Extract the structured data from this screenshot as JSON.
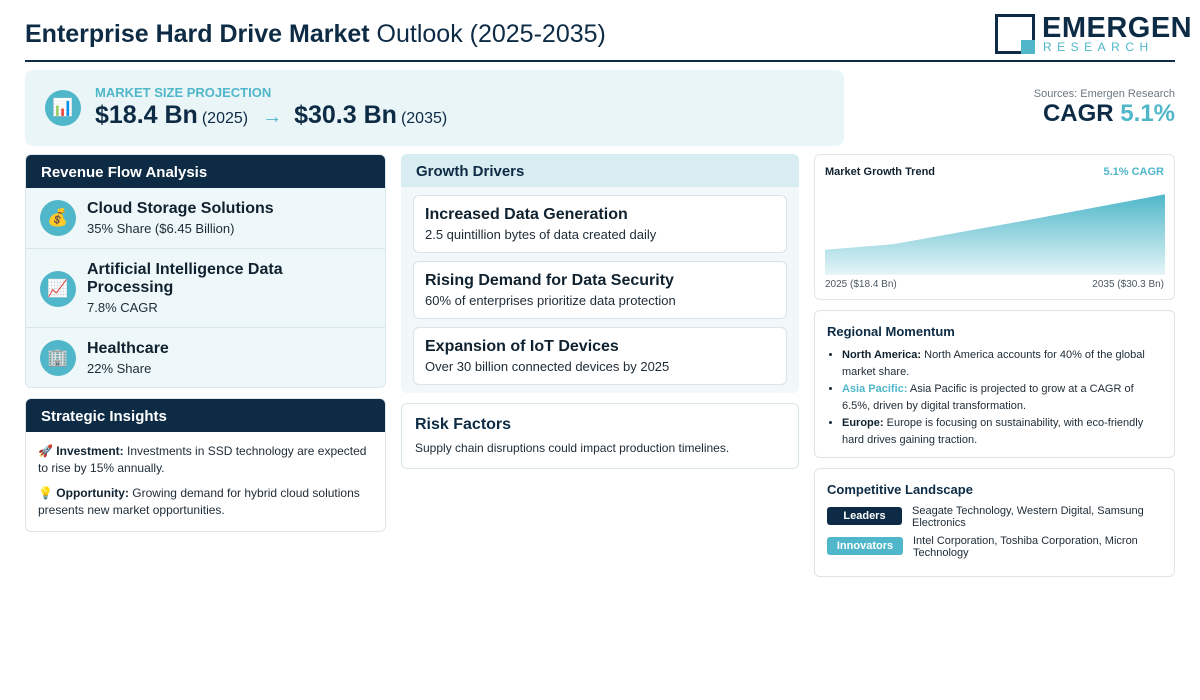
{
  "header": {
    "title_bold": "Enterprise Hard Drive Market",
    "title_rest": "Outlook (2025-2035)",
    "logo_name": "EMERGEN",
    "logo_sub": "RESEARCH"
  },
  "projection": {
    "label": "MARKET SIZE PROJECTION",
    "start_value": "$18.4 Bn",
    "start_year": "(2025)",
    "arrow": "→",
    "end_value": "$30.3 Bn",
    "end_year": "(2035)",
    "icon": "bar-chart-icon"
  },
  "sources": "Sources: Emergen Research",
  "cagr": {
    "label": "CAGR",
    "value": "5.1%"
  },
  "revenue": {
    "title": "Revenue Flow Analysis",
    "items": [
      {
        "icon": "money-bag-icon",
        "glyph": "💰",
        "title": "Cloud Storage Solutions",
        "sub": "35% Share ($6.45 Billion)"
      },
      {
        "icon": "chart-increasing-icon",
        "glyph": "📈",
        "title": "Artificial Intelligence Data Processing",
        "sub": "7.8% CAGR"
      },
      {
        "icon": "hospital-icon",
        "glyph": "🏢",
        "title": "Healthcare",
        "sub": "22% Share"
      }
    ]
  },
  "insights": {
    "title": "Strategic Insights",
    "items": [
      {
        "icon": "rocket-icon",
        "glyph": "🚀",
        "label": "Investment:",
        "text": "Investments in SSD technology are expected to rise by 15% annually."
      },
      {
        "icon": "light-bulb-icon",
        "glyph": "💡",
        "label": "Opportunity:",
        "text": "Growing demand for hybrid cloud solutions presents new market opportunities."
      }
    ]
  },
  "drivers": {
    "title": "Growth Drivers",
    "items": [
      {
        "title": "Increased Data Generation",
        "sub": "2.5 quintillion bytes of data created daily"
      },
      {
        "title": "Rising Demand for Data Security",
        "sub": "60% of enterprises prioritize data protection"
      },
      {
        "title": "Expansion of IoT Devices",
        "sub": "Over 30 billion connected devices by 2025"
      }
    ]
  },
  "risk": {
    "title": "Risk Factors",
    "text": "Supply chain disruptions could impact production timelines."
  },
  "trend": {
    "title": "Market Growth Trend",
    "cagr_label": "5.1% CAGR",
    "start_label": "2025 ($18.4 Bn)",
    "end_label": "2035 ($30.3 Bn)"
  },
  "chart_data": {
    "type": "area",
    "x": [
      2025,
      2027,
      2031,
      2035
    ],
    "values": [
      18.4,
      19.6,
      24.8,
      30.3
    ],
    "title": "Market Growth Trend",
    "xlabel": "",
    "ylabel": "",
    "ylim": [
      13,
      31
    ],
    "grid": false,
    "colors": {
      "top": "#4fb7c9",
      "bottom": "#e6f5f8"
    }
  },
  "regional": {
    "title": "Regional Momentum",
    "items": [
      {
        "region": "North America:",
        "text": "North America accounts for 40% of the global market share.",
        "accent": false
      },
      {
        "region": "Asia Pacific:",
        "text": "Asia Pacific is projected to grow at a CAGR of 6.5%, driven by digital transformation.",
        "accent": true
      },
      {
        "region": "Europe:",
        "text": "Europe is focusing on sustainability, with eco-friendly hard drives gaining traction.",
        "accent": false
      }
    ]
  },
  "competitive": {
    "title": "Competitive Landscape",
    "leaders_label": "Leaders",
    "leaders": "Seagate Technology, Western Digital, Samsung Electronics",
    "innovators_label": "Innovators",
    "innovators": "Intel Corporation, Toshiba Corporation, Micron Technology"
  },
  "colors": {
    "navy": "#0d2b45",
    "accent": "#4fb7c9",
    "panel": "#eaf5f8"
  }
}
